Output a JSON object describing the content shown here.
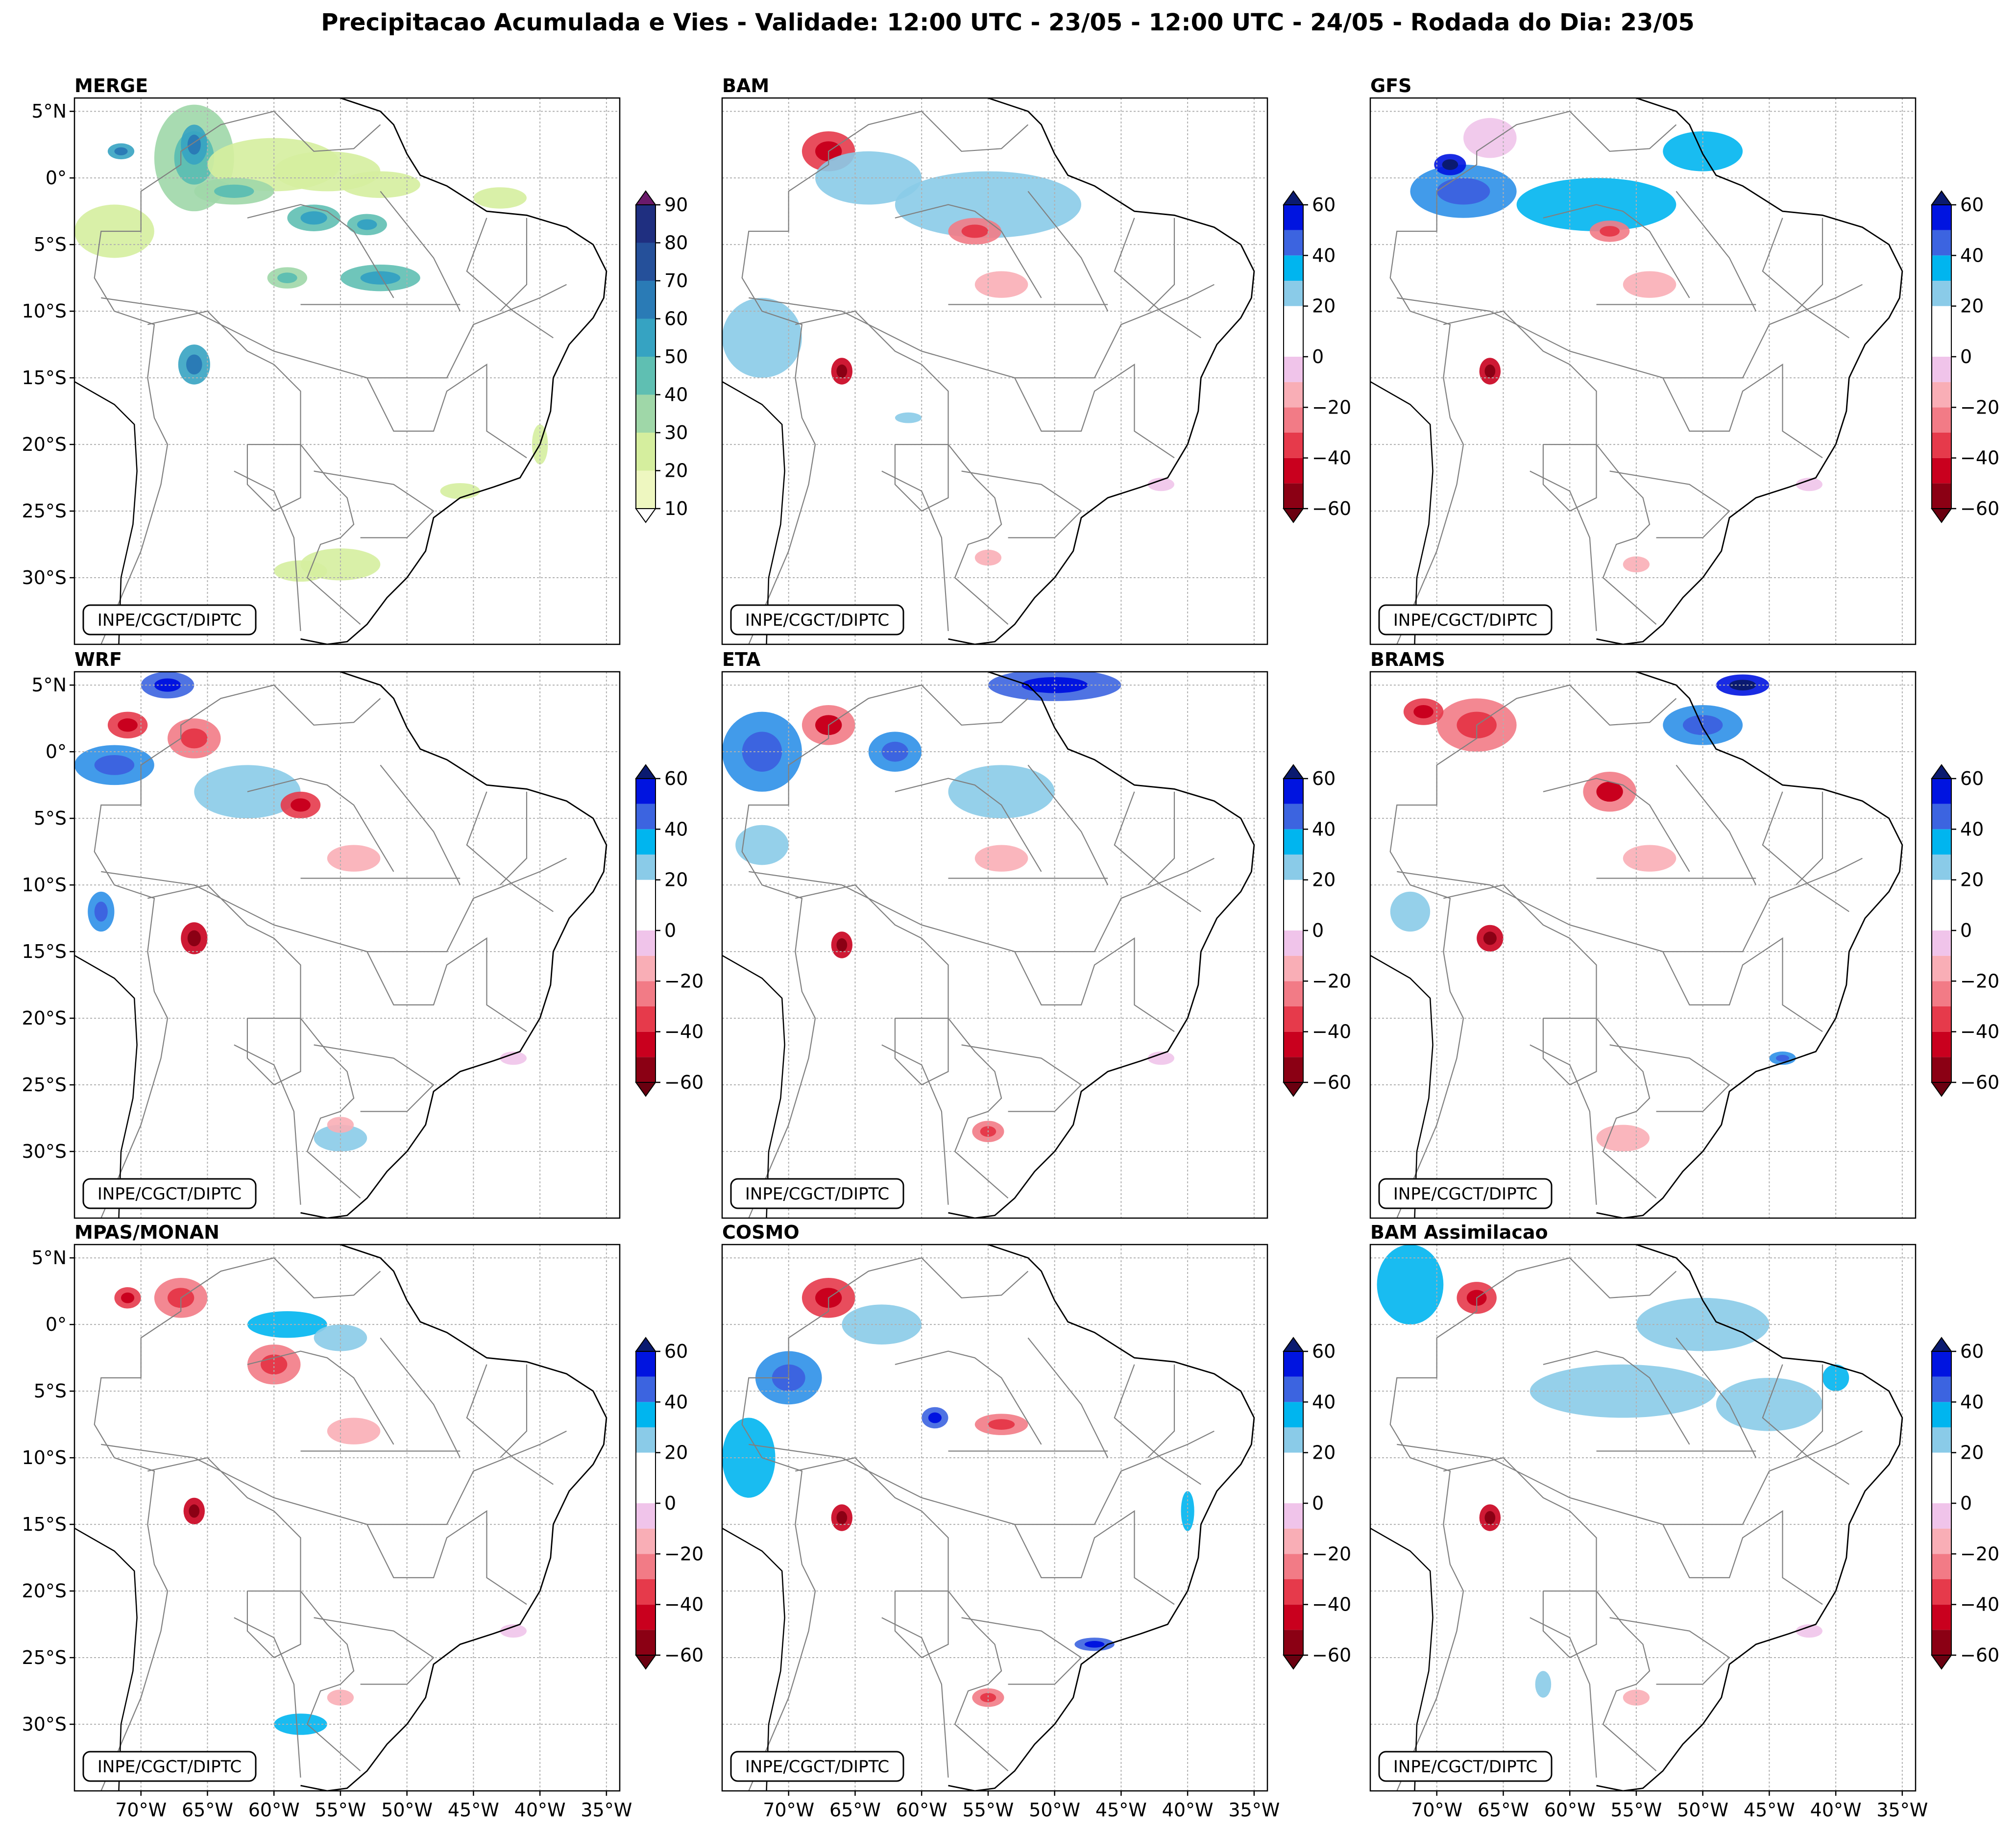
{
  "title": "Precipitacao Acumulada e Vies - Validade: 12:00 UTC - 23/05 - 12:00 UTC - 24/05 - Rodada do Dia: 23/05",
  "credit": "INPE/CGCT/DIPTC",
  "colors": {
    "coast": "#000000",
    "border": "#808080",
    "grid": "#b0b0b0",
    "precip": [
      "#eef7c0",
      "#d5ee9e",
      "#9fd7a8",
      "#5fbfb2",
      "#36a3c2",
      "#2a7bb6",
      "#25509a",
      "#1f2f80",
      "#0b1850",
      "#6b1a6b"
    ],
    "bias_neg": [
      "#8b0014",
      "#c9001e",
      "#e63a4b",
      "#f27b86",
      "#f9aeb6",
      "#f0c4ea"
    ],
    "bias_pos": [
      "#8acbe8",
      "#00b5ef",
      "#2d90e8",
      "#3c64e0",
      "#0014e0",
      "#0a1a70"
    ]
  },
  "axes": {
    "lat_ticks": [
      "5°N",
      "0°",
      "5°S",
      "10°S",
      "15°S",
      "20°S",
      "25°S",
      "30°S"
    ],
    "lon_ticks": [
      "70°W",
      "65°W",
      "60°W",
      "55°W",
      "50°W",
      "45°W",
      "40°W",
      "35°W"
    ]
  },
  "colorbars": {
    "precip": [
      "10",
      "20",
      "30",
      "40",
      "50",
      "60",
      "70",
      "80",
      "90"
    ],
    "bias": [
      "−60",
      "−40",
      "−20",
      "0",
      "20",
      "40",
      "60"
    ]
  },
  "chart_data": {
    "type": "heatmap",
    "title": "Precipitacao Acumulada e Vies - Validade: 12:00 UTC - 23/05 - 12:00 UTC - 24/05 - Rodada do Dia: 23/05",
    "xlim": [
      -75,
      -34
    ],
    "ylim": [
      -35,
      6
    ],
    "x_ticks": [
      -70,
      -65,
      -60,
      -55,
      -50,
      -45,
      -40,
      -35
    ],
    "y_ticks": [
      5,
      0,
      -5,
      -10,
      -15,
      -20,
      -25,
      -30
    ],
    "panels": [
      {
        "name": "MERGE",
        "variable": "precipitation",
        "colorbar": "precip",
        "levels": [
          10,
          20,
          30,
          40,
          50,
          60,
          70,
          80,
          90
        ],
        "regions": [
          {
            "lon": -66,
            "lat": 1.5,
            "rx": 3,
            "ry": 4,
            "v": 30
          },
          {
            "lon": -66,
            "lat": 2.5,
            "rx": 1,
            "ry": 1.5,
            "v": 55
          },
          {
            "lon": -71.5,
            "lat": 2,
            "rx": 1,
            "ry": 0.6,
            "v": 55
          },
          {
            "lon": -60,
            "lat": 1,
            "rx": 5,
            "ry": 2,
            "v": 20
          },
          {
            "lon": -56,
            "lat": 0.5,
            "rx": 4,
            "ry": 1.5,
            "v": 20
          },
          {
            "lon": -63,
            "lat": -1,
            "rx": 3,
            "ry": 1,
            "v": 35
          },
          {
            "lon": -57,
            "lat": -3,
            "rx": 2,
            "ry": 1,
            "v": 40
          },
          {
            "lon": -53,
            "lat": -3.5,
            "rx": 1.5,
            "ry": 0.8,
            "v": 45
          },
          {
            "lon": -72,
            "lat": -4,
            "rx": 3,
            "ry": 2,
            "v": 20
          },
          {
            "lon": -52,
            "lat": -7.5,
            "rx": 3,
            "ry": 1,
            "v": 40
          },
          {
            "lon": -59,
            "lat": -7.5,
            "rx": 1.5,
            "ry": 0.8,
            "v": 30
          },
          {
            "lon": -66,
            "lat": -14,
            "rx": 1.2,
            "ry": 1.5,
            "v": 50
          },
          {
            "lon": -52,
            "lat": -0.5,
            "rx": 3,
            "ry": 1,
            "v": 20
          },
          {
            "lon": -43,
            "lat": -1.5,
            "rx": 2,
            "ry": 0.8,
            "v": 20
          },
          {
            "lon": -55,
            "lat": -29,
            "rx": 3,
            "ry": 1.2,
            "v": 20
          },
          {
            "lon": -58,
            "lat": -29.5,
            "rx": 2,
            "ry": 0.8,
            "v": 20
          },
          {
            "lon": -46,
            "lat": -23.5,
            "rx": 1.5,
            "ry": 0.6,
            "v": 20
          },
          {
            "lon": -40,
            "lat": -20,
            "rx": 0.6,
            "ry": 1.5,
            "v": 20
          }
        ]
      },
      {
        "name": "BAM",
        "variable": "bias",
        "colorbar": "bias",
        "levels": [
          -60,
          -50,
          -40,
          -30,
          -20,
          -10,
          10,
          20,
          30,
          40,
          50,
          60
        ],
        "regions": [
          {
            "lon": -67,
            "lat": 2,
            "rx": 2,
            "ry": 1.5,
            "v": -40
          },
          {
            "lon": -55,
            "lat": -2,
            "rx": 7,
            "ry": 2.5,
            "v": 15
          },
          {
            "lon": -64,
            "lat": 0,
            "rx": 4,
            "ry": 2,
            "v": 15
          },
          {
            "lon": -72,
            "lat": -12,
            "rx": 3,
            "ry": 3,
            "v": 15
          },
          {
            "lon": -56,
            "lat": -4,
            "rx": 2,
            "ry": 1,
            "v": -30
          },
          {
            "lon": -54,
            "lat": -8,
            "rx": 2,
            "ry": 1,
            "v": -20
          },
          {
            "lon": -66,
            "lat": -14.5,
            "rx": 0.8,
            "ry": 1,
            "v": -50
          },
          {
            "lon": -61,
            "lat": -18,
            "rx": 1,
            "ry": 0.4,
            "v": 15
          },
          {
            "lon": -55,
            "lat": -28.5,
            "rx": 1,
            "ry": 0.6,
            "v": -20
          },
          {
            "lon": -42,
            "lat": -23,
            "rx": 1,
            "ry": 0.5,
            "v": -15
          }
        ]
      },
      {
        "name": "GFS",
        "variable": "bias",
        "colorbar": "bias",
        "levels": [
          -60,
          -50,
          -40,
          -30,
          -20,
          -10,
          10,
          20,
          30,
          40,
          50,
          60
        ],
        "regions": [
          {
            "lon": -68,
            "lat": -1,
            "rx": 4,
            "ry": 2,
            "v": 35
          },
          {
            "lon": -58,
            "lat": -2,
            "rx": 6,
            "ry": 2,
            "v": 20
          },
          {
            "lon": -50,
            "lat": 2,
            "rx": 3,
            "ry": 1.5,
            "v": 25
          },
          {
            "lon": -69,
            "lat": 1,
            "rx": 1.2,
            "ry": 0.8,
            "v": 55
          },
          {
            "lon": -66,
            "lat": 3,
            "rx": 2,
            "ry": 1.5,
            "v": -15
          },
          {
            "lon": -57,
            "lat": -4,
            "rx": 1.5,
            "ry": 0.8,
            "v": -30
          },
          {
            "lon": -54,
            "lat": -8,
            "rx": 2,
            "ry": 1,
            "v": -25
          },
          {
            "lon": -66,
            "lat": -14.5,
            "rx": 0.8,
            "ry": 1,
            "v": -50
          },
          {
            "lon": -55,
            "lat": -29,
            "rx": 1,
            "ry": 0.6,
            "v": -25
          },
          {
            "lon": -42,
            "lat": -23,
            "rx": 1,
            "ry": 0.5,
            "v": -15
          }
        ]
      },
      {
        "name": "WRF",
        "variable": "bias",
        "colorbar": "bias",
        "levels": [
          -60,
          -50,
          -40,
          -30,
          -20,
          -10,
          10,
          20,
          30,
          40,
          50,
          60
        ],
        "regions": [
          {
            "lon": -71,
            "lat": 2,
            "rx": 1.5,
            "ry": 1,
            "v": -40
          },
          {
            "lon": -66,
            "lat": 1,
            "rx": 2,
            "ry": 1.5,
            "v": -30
          },
          {
            "lon": -68,
            "lat": 5,
            "rx": 2,
            "ry": 1,
            "v": 45
          },
          {
            "lon": -72,
            "lat": -1,
            "rx": 3,
            "ry": 1.5,
            "v": 30
          },
          {
            "lon": -62,
            "lat": -3,
            "rx": 4,
            "ry": 2,
            "v": 15
          },
          {
            "lon": -58,
            "lat": -4,
            "rx": 1.5,
            "ry": 1,
            "v": -40
          },
          {
            "lon": -54,
            "lat": -8,
            "rx": 2,
            "ry": 1,
            "v": -25
          },
          {
            "lon": -66,
            "lat": -14,
            "rx": 1,
            "ry": 1.2,
            "v": -55
          },
          {
            "lon": -73,
            "lat": -12,
            "rx": 1,
            "ry": 1.5,
            "v": 30
          },
          {
            "lon": -55,
            "lat": -29,
            "rx": 2,
            "ry": 1,
            "v": 15
          },
          {
            "lon": -55,
            "lat": -28,
            "rx": 1,
            "ry": 0.6,
            "v": -25
          },
          {
            "lon": -42,
            "lat": -23,
            "rx": 1,
            "ry": 0.5,
            "v": -15
          }
        ]
      },
      {
        "name": "ETA",
        "variable": "bias",
        "colorbar": "bias",
        "levels": [
          -60,
          -50,
          -40,
          -30,
          -20,
          -10,
          10,
          20,
          30,
          40,
          50,
          60
        ],
        "regions": [
          {
            "lon": -72,
            "lat": 0,
            "rx": 3,
            "ry": 3,
            "v": 30
          },
          {
            "lon": -50,
            "lat": 5,
            "rx": 5,
            "ry": 1.2,
            "v": 45
          },
          {
            "lon": -62,
            "lat": 0,
            "rx": 2,
            "ry": 1.5,
            "v": 35
          },
          {
            "lon": -54,
            "lat": -3,
            "rx": 4,
            "ry": 2,
            "v": 15
          },
          {
            "lon": -67,
            "lat": 2,
            "rx": 2,
            "ry": 1.5,
            "v": -35
          },
          {
            "lon": -54,
            "lat": -8,
            "rx": 2,
            "ry": 1,
            "v": -25
          },
          {
            "lon": -66,
            "lat": -14.5,
            "rx": 0.8,
            "ry": 1,
            "v": -50
          },
          {
            "lon": -55,
            "lat": -28.5,
            "rx": 1.2,
            "ry": 0.8,
            "v": -30
          },
          {
            "lon": -72,
            "lat": -7,
            "rx": 2,
            "ry": 1.5,
            "v": 15
          },
          {
            "lon": -42,
            "lat": -23,
            "rx": 1,
            "ry": 0.5,
            "v": -15
          }
        ]
      },
      {
        "name": "BRAMS",
        "variable": "bias",
        "colorbar": "bias",
        "levels": [
          -60,
          -50,
          -40,
          -30,
          -20,
          -10,
          10,
          20,
          30,
          40,
          50,
          60
        ],
        "regions": [
          {
            "lon": -67,
            "lat": 2,
            "rx": 3,
            "ry": 2,
            "v": -30
          },
          {
            "lon": -71,
            "lat": 3,
            "rx": 1.5,
            "ry": 1,
            "v": -40
          },
          {
            "lon": -57,
            "lat": -3,
            "rx": 2,
            "ry": 1.5,
            "v": -35
          },
          {
            "lon": -50,
            "lat": 2,
            "rx": 3,
            "ry": 1.5,
            "v": 30
          },
          {
            "lon": -47,
            "lat": 5,
            "rx": 2,
            "ry": 0.8,
            "v": 55
          },
          {
            "lon": -54,
            "lat": -8,
            "rx": 2,
            "ry": 1,
            "v": -25
          },
          {
            "lon": -66,
            "lat": -14,
            "rx": 1,
            "ry": 1,
            "v": -50
          },
          {
            "lon": -72,
            "lat": -12,
            "rx": 1.5,
            "ry": 1.5,
            "v": 15
          },
          {
            "lon": -56,
            "lat": -29,
            "rx": 2,
            "ry": 1,
            "v": -20
          },
          {
            "lon": -44,
            "lat": -23,
            "rx": 1,
            "ry": 0.5,
            "v": 30
          }
        ]
      },
      {
        "name": "MPAS/MONAN",
        "variable": "bias",
        "colorbar": "bias",
        "levels": [
          -60,
          -50,
          -40,
          -30,
          -20,
          -10,
          10,
          20,
          30,
          40,
          50,
          60
        ],
        "regions": [
          {
            "lon": -67,
            "lat": 2,
            "rx": 2,
            "ry": 1.5,
            "v": -30
          },
          {
            "lon": -71,
            "lat": 2,
            "rx": 1,
            "ry": 0.8,
            "v": -40
          },
          {
            "lon": -59,
            "lat": 0,
            "rx": 3,
            "ry": 1,
            "v": 20
          },
          {
            "lon": -55,
            "lat": -1,
            "rx": 2,
            "ry": 1,
            "v": 15
          },
          {
            "lon": -60,
            "lat": -3,
            "rx": 2,
            "ry": 1.5,
            "v": -30
          },
          {
            "lon": -54,
            "lat": -8,
            "rx": 2,
            "ry": 1,
            "v": -25
          },
          {
            "lon": -66,
            "lat": -14,
            "rx": 0.8,
            "ry": 1,
            "v": -55
          },
          {
            "lon": -58,
            "lat": -30,
            "rx": 2,
            "ry": 0.8,
            "v": 25
          },
          {
            "lon": -55,
            "lat": -28,
            "rx": 1,
            "ry": 0.6,
            "v": -25
          },
          {
            "lon": -42,
            "lat": -23,
            "rx": 1,
            "ry": 0.5,
            "v": -15
          }
        ]
      },
      {
        "name": "COSMO",
        "variable": "bias",
        "colorbar": "bias",
        "levels": [
          -60,
          -50,
          -40,
          -30,
          -20,
          -10,
          10,
          20,
          30,
          40,
          50,
          60
        ],
        "regions": [
          {
            "lon": -67,
            "lat": 2,
            "rx": 2,
            "ry": 1.5,
            "v": -40
          },
          {
            "lon": -70,
            "lat": -4,
            "rx": 2.5,
            "ry": 2,
            "v": 30
          },
          {
            "lon": -73,
            "lat": -10,
            "rx": 2,
            "ry": 3,
            "v": 20
          },
          {
            "lon": -63,
            "lat": 0,
            "rx": 3,
            "ry": 1.5,
            "v": 15
          },
          {
            "lon": -59,
            "lat": -7,
            "rx": 1,
            "ry": 0.8,
            "v": 45
          },
          {
            "lon": -54,
            "lat": -7.5,
            "rx": 2,
            "ry": 0.8,
            "v": -30
          },
          {
            "lon": -66,
            "lat": -14.5,
            "rx": 0.8,
            "ry": 1,
            "v": -50
          },
          {
            "lon": -55,
            "lat": -28,
            "rx": 1.2,
            "ry": 0.7,
            "v": -30
          },
          {
            "lon": -47,
            "lat": -24,
            "rx": 1.5,
            "ry": 0.5,
            "v": 40
          },
          {
            "lon": -40,
            "lat": -14,
            "rx": 0.5,
            "ry": 1.5,
            "v": 20
          }
        ]
      },
      {
        "name": "BAM Assimilacao",
        "variable": "bias",
        "colorbar": "bias",
        "levels": [
          -60,
          -50,
          -40,
          -30,
          -20,
          -10,
          10,
          20,
          30,
          40,
          50,
          60
        ],
        "regions": [
          {
            "lon": -72,
            "lat": 3,
            "rx": 2.5,
            "ry": 3,
            "v": 20
          },
          {
            "lon": -67,
            "lat": 2,
            "rx": 1.5,
            "ry": 1.2,
            "v": -40
          },
          {
            "lon": -50,
            "lat": 0,
            "rx": 5,
            "ry": 2,
            "v": 15
          },
          {
            "lon": -56,
            "lat": -5,
            "rx": 7,
            "ry": 2,
            "v": 15
          },
          {
            "lon": -45,
            "lat": -6,
            "rx": 4,
            "ry": 2,
            "v": 15
          },
          {
            "lon": -40,
            "lat": -4,
            "rx": 1,
            "ry": 1,
            "v": 20
          },
          {
            "lon": -66,
            "lat": -14.5,
            "rx": 0.8,
            "ry": 1,
            "v": -50
          },
          {
            "lon": -55,
            "lat": -28,
            "rx": 1,
            "ry": 0.6,
            "v": -25
          },
          {
            "lon": -62,
            "lat": -27,
            "rx": 0.6,
            "ry": 1,
            "v": 15
          },
          {
            "lon": -42,
            "lat": -23,
            "rx": 1,
            "ry": 0.5,
            "v": -15
          }
        ]
      }
    ]
  }
}
